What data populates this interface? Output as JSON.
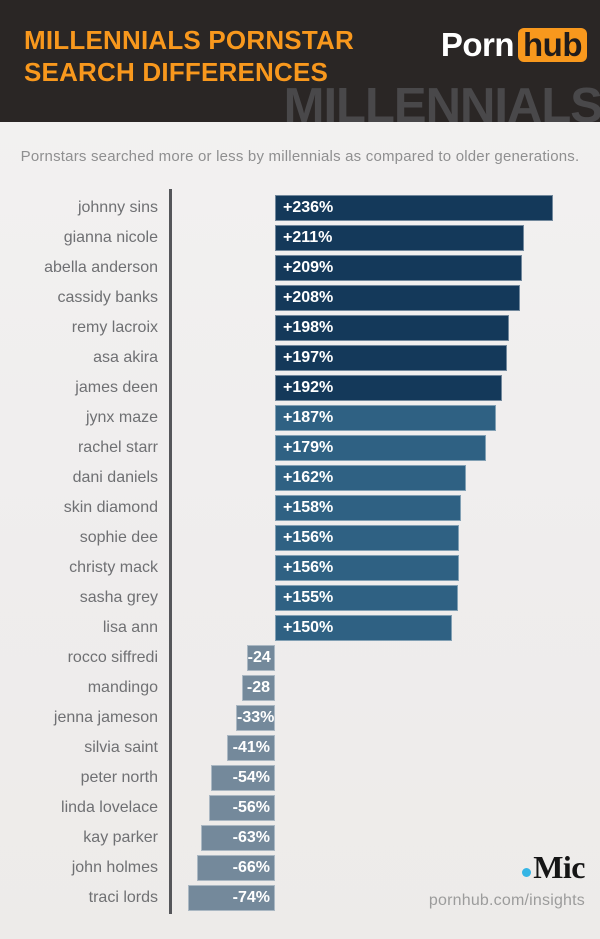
{
  "header": {
    "title_line1": "MILLENNIALS PORNSTAR",
    "title_line2": "SEARCH DIFFERENCES",
    "logo_part1": "Porn",
    "logo_part2": "hub",
    "watermark": "MILLENNIALS",
    "accent_color": "#f8981d",
    "background_color": "#2a2625"
  },
  "subtitle": "Pornstars searched more or less by millennials as compared to older generations.",
  "footer": {
    "mic_logo_text": "Mic",
    "mic_dot_color": "#35b5e5",
    "source_text": "pornhub.com/insights"
  },
  "chart_data": {
    "type": "bar",
    "orientation": "horizontal",
    "title": "MILLENNIALS PORNSTAR SEARCH DIFFERENCES",
    "subtitle": "Pornstars searched more or less by millennials as compared to older generations.",
    "xlabel": "",
    "ylabel": "",
    "xlim": [
      -100,
      250
    ],
    "grid": false,
    "legend": false,
    "categories": [
      "johnny sins",
      "gianna nicole",
      "abella anderson",
      "cassidy banks",
      "remy lacroix",
      "asa akira",
      "james deen",
      "jynx maze",
      "rachel starr",
      "dani daniels",
      "skin diamond",
      "sophie dee",
      "christy mack",
      "sasha grey",
      "lisa ann",
      "rocco siffredi",
      "mandingo",
      "jenna jameson",
      "silvia saint",
      "peter north",
      "linda lovelace",
      "kay parker",
      "john holmes",
      "traci lords"
    ],
    "values": [
      236,
      211,
      209,
      208,
      198,
      197,
      192,
      187,
      179,
      162,
      158,
      156,
      156,
      155,
      150,
      -24,
      -28,
      -33,
      -41,
      -54,
      -56,
      -63,
      -66,
      -74
    ],
    "bar_labels": [
      "+236%",
      "+211%",
      "+209%",
      "+208%",
      "+198%",
      "+197%",
      "+192%",
      "+187%",
      "+179%",
      "+162%",
      "+158%",
      "+156%",
      "+156%",
      "+155%",
      "+150%",
      "-24",
      "-28",
      "-33%",
      "-41%",
      "-54%",
      "-56%",
      "-63%",
      "-66%",
      "-74%"
    ],
    "color_tiers": [
      "dark",
      "dark",
      "dark",
      "dark",
      "dark",
      "dark",
      "dark",
      "mid",
      "mid",
      "mid",
      "mid",
      "mid",
      "mid",
      "mid",
      "mid",
      "neg",
      "neg",
      "neg",
      "neg",
      "neg",
      "neg",
      "neg",
      "neg",
      "neg"
    ],
    "colors": {
      "dark": "#14395a",
      "mid": "#2f6183",
      "neg": "#74899b",
      "axis": "#55565a",
      "bar_label": "#ffffff",
      "category_label": "#6f7073"
    }
  }
}
